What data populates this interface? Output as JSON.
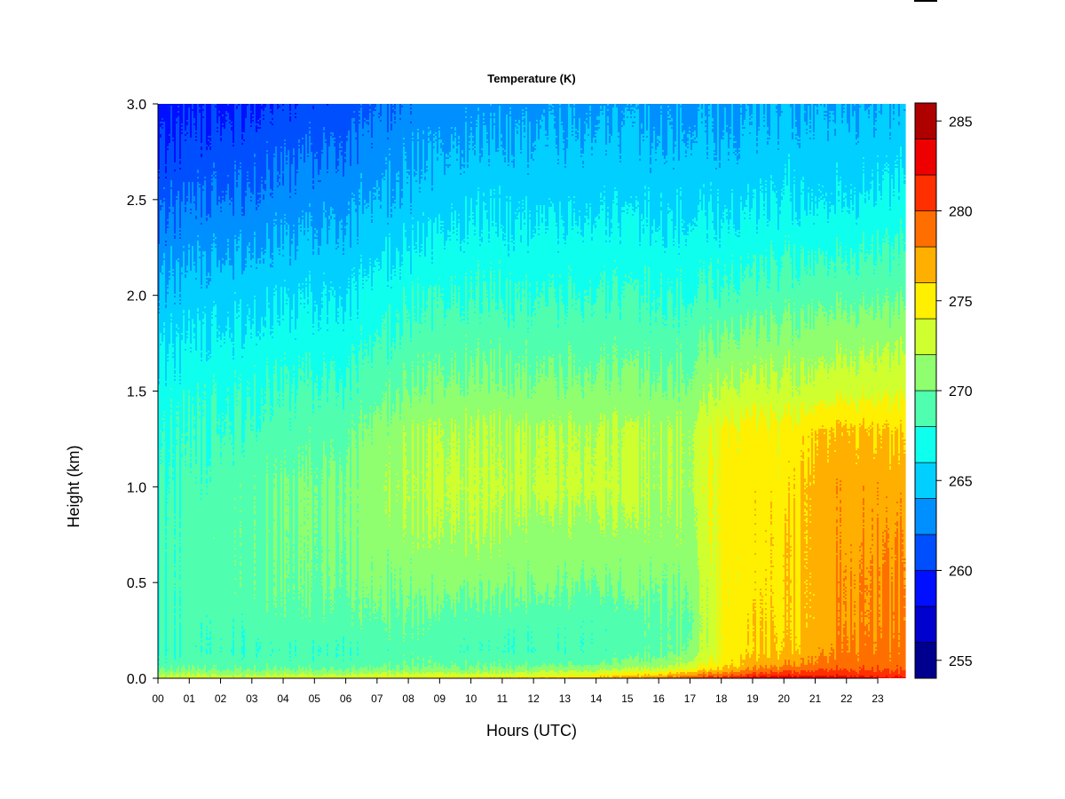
{
  "chart_data": {
    "type": "heatmap",
    "title": "Temperature (K)",
    "xlabel": "Hours (UTC)",
    "ylabel": "Height (km)",
    "x_ticks": [
      "00",
      "01",
      "02",
      "03",
      "04",
      "05",
      "06",
      "07",
      "08",
      "09",
      "10",
      "11",
      "12",
      "13",
      "14",
      "15",
      "16",
      "17",
      "18",
      "19",
      "20",
      "21",
      "22",
      "23"
    ],
    "xlim": [
      0,
      23.85
    ],
    "ylim": [
      0.0,
      3.0
    ],
    "y_ticks": [
      "0.0",
      "0.5",
      "1.0",
      "1.5",
      "2.0",
      "2.5",
      "3.0"
    ],
    "grid": false,
    "colorbar": {
      "ticks": [
        "255",
        "260",
        "265",
        "270",
        "275",
        "280",
        "285"
      ],
      "range": [
        254,
        286
      ],
      "step": 2,
      "colors": [
        "#00008f",
        "#0000cf",
        "#000fff",
        "#004fff",
        "#008fff",
        "#00cfff",
        "#0fffef",
        "#4fffaf",
        "#8fff6f",
        "#cfff2f",
        "#ffef00",
        "#ffaf00",
        "#ff6f00",
        "#ff2f00",
        "#ef0000",
        "#af0000"
      ]
    },
    "profiles": {
      "heights_km": [
        0.0,
        0.02,
        0.05,
        0.08,
        0.15,
        0.3,
        0.5,
        0.8,
        1.0,
        1.3,
        1.5,
        2.0,
        2.5,
        3.0
      ],
      "times_h": [
        0,
        3,
        6,
        8,
        10,
        12,
        14,
        16,
        17,
        18,
        19,
        20,
        21,
        22,
        23.85
      ],
      "temperature_K": [
        [
          274.0,
          272.0,
          270.0,
          269.0,
          268.5,
          268.5,
          268.5,
          268.5,
          268.0,
          267.5,
          267.0,
          264.5,
          261.5,
          259.0
        ],
        [
          274.5,
          272.0,
          270.0,
          269.0,
          268.5,
          269.0,
          269.5,
          269.5,
          269.5,
          268.5,
          268.0,
          265.5,
          262.5,
          260.0
        ],
        [
          275.0,
          272.5,
          270.0,
          269.0,
          268.5,
          269.5,
          270.0,
          270.5,
          270.5,
          269.5,
          268.5,
          266.0,
          263.5,
          261.0
        ],
        [
          275.5,
          273.0,
          270.5,
          269.5,
          269.0,
          269.5,
          270.5,
          271.5,
          272.0,
          271.5,
          270.0,
          267.5,
          264.5,
          262.5
        ],
        [
          276.0,
          273.0,
          270.5,
          269.5,
          268.5,
          269.0,
          270.5,
          272.0,
          272.5,
          272.0,
          270.5,
          268.0,
          265.5,
          263.0
        ],
        [
          276.5,
          273.5,
          271.0,
          269.5,
          268.5,
          269.0,
          270.5,
          271.5,
          272.5,
          272.0,
          270.5,
          268.0,
          265.5,
          263.5
        ],
        [
          277.5,
          274.5,
          271.5,
          269.5,
          268.5,
          268.5,
          270.0,
          271.5,
          272.5,
          272.0,
          270.5,
          268.0,
          265.5,
          263.5
        ],
        [
          279.0,
          276.5,
          273.0,
          271.0,
          269.5,
          269.5,
          270.5,
          271.5,
          272.0,
          272.0,
          270.5,
          268.0,
          265.5,
          263.5
        ],
        [
          281.0,
          278.0,
          274.5,
          272.5,
          270.5,
          270.0,
          270.5,
          271.5,
          272.0,
          272.0,
          270.5,
          268.0,
          265.5,
          263.5
        ],
        [
          282.5,
          279.5,
          276.5,
          275.0,
          274.5,
          274.5,
          274.5,
          275.0,
          275.0,
          274.5,
          272.5,
          268.5,
          265.5,
          263.5
        ],
        [
          283.5,
          280.5,
          278.0,
          276.5,
          275.5,
          275.5,
          275.0,
          275.0,
          275.0,
          274.5,
          272.5,
          268.5,
          265.5,
          263.5
        ],
        [
          284.5,
          281.5,
          279.0,
          277.5,
          276.0,
          275.5,
          275.5,
          275.5,
          275.0,
          274.5,
          272.5,
          269.0,
          266.0,
          264.0
        ],
        [
          284.5,
          282.0,
          280.0,
          278.5,
          277.5,
          277.0,
          277.0,
          277.0,
          277.0,
          276.0,
          273.0,
          269.5,
          266.0,
          264.0
        ],
        [
          283.5,
          281.5,
          280.0,
          279.0,
          278.5,
          278.0,
          278.0,
          277.5,
          277.5,
          276.5,
          273.5,
          269.5,
          266.0,
          264.0
        ],
        [
          282.5,
          281.0,
          279.5,
          279.0,
          278.5,
          278.0,
          278.0,
          277.5,
          277.0,
          275.5,
          273.5,
          269.5,
          266.5,
          264.0
        ]
      ]
    }
  }
}
